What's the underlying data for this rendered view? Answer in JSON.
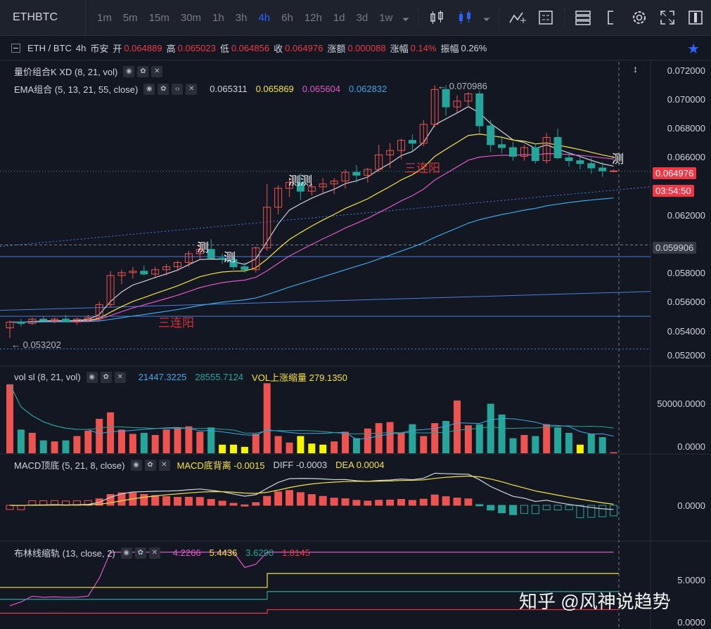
{
  "toolbar": {
    "symbol": "ETHBTC",
    "timeframes": [
      "1m",
      "5m",
      "15m",
      "30m",
      "1h",
      "3h",
      "4h",
      "6h",
      "12h",
      "1d",
      "3d",
      "1w"
    ],
    "active_timeframe": "4h"
  },
  "info": {
    "pair": "ETH / BTC",
    "interval": "4h",
    "exchange": "币安",
    "open_label": "开",
    "open": "0.064889",
    "high_label": "高",
    "high": "0.065023",
    "low_label": "低",
    "low": "0.064856",
    "close_label": "收",
    "close": "0.064976",
    "change_label": "涨额",
    "change": "0.000088",
    "change_pct_label": "涨幅",
    "change_pct": "0.14%",
    "amplitude_label": "振幅",
    "amplitude": "0.26%"
  },
  "indicators": {
    "kxd": {
      "label": "量价组合K XD (8, 21, vol)"
    },
    "ema": {
      "label": "EMA组合 (5, 13, 21, 55, close)",
      "v1": "0.065311",
      "v2": "0.065869",
      "v3": "0.065604",
      "v4": "0.062832"
    },
    "vol": {
      "label": "vol sl (8, 21, vol)",
      "v1": "21447.3225",
      "v2": "28555.7124",
      "v3": "VOL上涨缩量 279.1350"
    },
    "macd": {
      "label": "MACD顶底 (5, 21, 8, close)",
      "v1": "MACD底背离 -0.0015",
      "v2": "DIFF -0.0003",
      "v3": "DEA 0.0004"
    },
    "boll": {
      "label": "布林线缩轨 (13, close, 2)",
      "v1": "4.2266",
      "v2": "5.4436",
      "v3": "3.6290",
      "v4": "1.8145"
    }
  },
  "price_axis": [
    "0.072000",
    "0.070000",
    "0.068000",
    "0.066000",
    "0.062000",
    "0.058000",
    "0.056000",
    "0.054000",
    "0.052000"
  ],
  "price_tags": {
    "last": "0.064976",
    "countdown": "03:54:50",
    "level": "0.059906"
  },
  "vol_axis": [
    "50000.0000",
    "0.0000"
  ],
  "macd_axis": [
    "0.0000"
  ],
  "boll_axis": [
    "5.0000",
    "0.0000"
  ],
  "annotations": {
    "high": "← 0.070986",
    "low": "← 0.053202",
    "ce": "测",
    "cece": "测测",
    "three_yang": "三连阳"
  },
  "watermark": "知乎 @风神说趋势",
  "colors": {
    "up": "#ef5350",
    "down": "#26a69a",
    "bg": "#131722",
    "accent": "#2962ff"
  },
  "chart_data": {
    "type": "candlestick",
    "candles": [
      [
        0.0542,
        0.0547,
        0.0535,
        0.0546
      ],
      [
        0.0546,
        0.0548,
        0.0543,
        0.0545
      ],
      [
        0.0545,
        0.0549,
        0.0544,
        0.0548
      ],
      [
        0.0548,
        0.055,
        0.0546,
        0.0547
      ],
      [
        0.0547,
        0.0549,
        0.0545,
        0.0548
      ],
      [
        0.0548,
        0.0551,
        0.0547,
        0.0546
      ],
      [
        0.0546,
        0.0549,
        0.0544,
        0.0548
      ],
      [
        0.0548,
        0.0551,
        0.0546,
        0.0549
      ],
      [
        0.0549,
        0.056,
        0.0547,
        0.0558
      ],
      [
        0.0558,
        0.0581,
        0.0556,
        0.0578
      ],
      [
        0.0578,
        0.0582,
        0.0572,
        0.058
      ],
      [
        0.058,
        0.0584,
        0.0576,
        0.0581
      ],
      [
        0.0581,
        0.0585,
        0.0578,
        0.0579
      ],
      [
        0.0579,
        0.0584,
        0.0577,
        0.0582
      ],
      [
        0.0582,
        0.0586,
        0.0578,
        0.0584
      ],
      [
        0.0584,
        0.0588,
        0.0581,
        0.0587
      ],
      [
        0.0587,
        0.0595,
        0.0584,
        0.0593
      ],
      [
        0.0593,
        0.06,
        0.0589,
        0.0596
      ],
      [
        0.0596,
        0.0603,
        0.059,
        0.059
      ],
      [
        0.059,
        0.0593,
        0.0586,
        0.0589
      ],
      [
        0.0589,
        0.0591,
        0.0582,
        0.0584
      ],
      [
        0.0584,
        0.0587,
        0.058,
        0.0582
      ],
      [
        0.0582,
        0.0598,
        0.058,
        0.0597
      ],
      [
        0.0597,
        0.0641,
        0.0595,
        0.0625
      ],
      [
        0.0625,
        0.064,
        0.062,
        0.0638
      ],
      [
        0.0638,
        0.0645,
        0.0632,
        0.0642
      ],
      [
        0.0642,
        0.0648,
        0.063,
        0.0636
      ],
      [
        0.0636,
        0.0641,
        0.0633,
        0.0639
      ],
      [
        0.0639,
        0.0645,
        0.0634,
        0.0641
      ],
      [
        0.0641,
        0.0645,
        0.0634,
        0.0643
      ],
      [
        0.0643,
        0.0651,
        0.0638,
        0.0649
      ],
      [
        0.0649,
        0.0654,
        0.0642,
        0.0647
      ],
      [
        0.0647,
        0.0652,
        0.0642,
        0.0651
      ],
      [
        0.0651,
        0.0668,
        0.0649,
        0.0661
      ],
      [
        0.0661,
        0.0669,
        0.0652,
        0.0664
      ],
      [
        0.0664,
        0.0672,
        0.0658,
        0.0671
      ],
      [
        0.0671,
        0.0675,
        0.0664,
        0.0669
      ],
      [
        0.0669,
        0.0685,
        0.0667,
        0.0682
      ],
      [
        0.0682,
        0.0709,
        0.068,
        0.0706
      ],
      [
        0.0706,
        0.0709,
        0.0688,
        0.0694
      ],
      [
        0.0694,
        0.0702,
        0.069,
        0.0698
      ],
      [
        0.0698,
        0.0704,
        0.0694,
        0.0703
      ],
      [
        0.0703,
        0.0705,
        0.0676,
        0.0681
      ],
      [
        0.0681,
        0.0685,
        0.0663,
        0.0668
      ],
      [
        0.0668,
        0.0674,
        0.0662,
        0.0666
      ],
      [
        0.0666,
        0.067,
        0.0657,
        0.066
      ],
      [
        0.066,
        0.0668,
        0.0657,
        0.0666
      ],
      [
        0.0666,
        0.0669,
        0.0655,
        0.0657
      ],
      [
        0.0657,
        0.0676,
        0.0655,
        0.0673
      ],
      [
        0.0673,
        0.0679,
        0.0658,
        0.0659
      ],
      [
        0.0659,
        0.0663,
        0.0653,
        0.0657
      ],
      [
        0.0657,
        0.066,
        0.0651,
        0.0655
      ],
      [
        0.0655,
        0.0659,
        0.0648,
        0.0652
      ],
      [
        0.0652,
        0.0656,
        0.0646,
        0.065
      ],
      [
        0.065,
        0.0651,
        0.0649,
        0.065
      ]
    ],
    "volumes": [
      64000,
      22000,
      19000,
      12000,
      11000,
      12000,
      16000,
      21000,
      32000,
      38000,
      22000,
      18000,
      19000,
      17000,
      22000,
      24000,
      25000,
      20000,
      24000,
      8000,
      8000,
      6000,
      18000,
      65000,
      16000,
      10000,
      16000,
      9000,
      8000,
      11000,
      20000,
      14000,
      23000,
      28000,
      29000,
      19000,
      27000,
      16000,
      28000,
      30000,
      49000,
      26000,
      27000,
      46000,
      36000,
      14000,
      17000,
      16000,
      27000,
      24000,
      19000,
      8000,
      18000,
      15000,
      1000
    ],
    "price_ylim": [
      0.052,
      0.0725
    ]
  }
}
